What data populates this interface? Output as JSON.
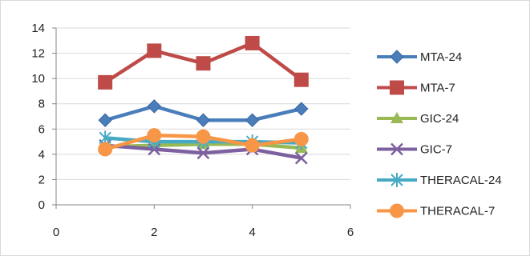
{
  "chart_data": {
    "type": "line",
    "title": "",
    "xlabel": "",
    "ylabel": "",
    "xlim": [
      0,
      6
    ],
    "ylim": [
      0,
      14
    ],
    "x_ticks": [
      "0",
      "2",
      "4",
      "6"
    ],
    "y_ticks": [
      "0",
      "2",
      "4",
      "6",
      "8",
      "10",
      "12",
      "14"
    ],
    "grid": "horizontal",
    "legend_position": "right",
    "x": [
      1,
      2,
      3,
      4,
      5
    ],
    "series": [
      {
        "name": "MTA-24",
        "values": [
          6.7,
          7.8,
          6.7,
          6.7,
          7.6
        ],
        "color": "#4a7ebb",
        "marker": "diamond"
      },
      {
        "name": "MTA-7",
        "values": [
          9.7,
          12.2,
          11.2,
          12.8,
          9.9
        ],
        "color": "#be4b48",
        "marker": "square"
      },
      {
        "name": "GIC-24",
        "values": [
          4.6,
          4.7,
          4.8,
          4.8,
          4.5
        ],
        "color": "#98b954",
        "marker": "triangle"
      },
      {
        "name": "GIC-7",
        "values": [
          4.7,
          4.4,
          4.1,
          4.4,
          3.7
        ],
        "color": "#7d60a0",
        "marker": "x"
      },
      {
        "name": "THERACAL-24",
        "values": [
          5.3,
          5.0,
          5.0,
          5.0,
          4.9
        ],
        "color": "#46aac5",
        "marker": "star"
      },
      {
        "name": "THERACAL-7",
        "values": [
          4.4,
          5.5,
          5.4,
          4.7,
          5.2
        ],
        "color": "#f79646",
        "marker": "circle"
      }
    ]
  }
}
